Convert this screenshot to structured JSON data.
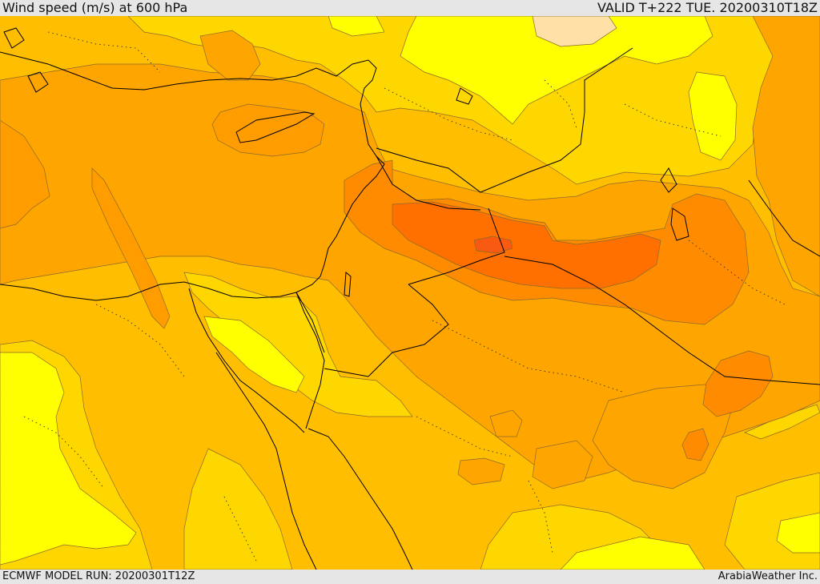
{
  "header": {
    "title": "Wind speed (m/s) at 600 hPa",
    "valid_time": "VALID T+222 TUE. 20200310T18Z"
  },
  "footer": {
    "model_run": "ECMWF MODEL RUN: 20200301T12Z",
    "credit": "ArabiaWeather Inc."
  },
  "map": {
    "variable": "wind speed",
    "level": "600 hPa",
    "fill_colors": {
      "weakest": "#ffff00",
      "weak": "#ffd700",
      "moderate": "#ffbf00",
      "strong": "#ffa500",
      "stronger": "#ff8c00",
      "strongest": "#ff7000",
      "peak": "#f75a10",
      "calm_patch": "#ffe0a6"
    },
    "line_colors": {
      "coastline": "#000000",
      "contour": "#8c6a2a"
    }
  }
}
